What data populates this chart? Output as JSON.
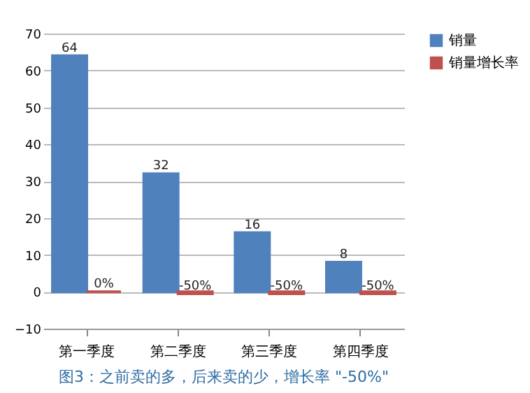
{
  "chart_data": {
    "type": "bar",
    "categories": [
      "第一季度",
      "第二季度",
      "第三季度",
      "第四季度"
    ],
    "series": [
      {
        "name": "销量",
        "color": "#4f81bd",
        "values": [
          64,
          32,
          16,
          8
        ],
        "value_labels": [
          "64",
          "32",
          "16",
          "8"
        ]
      },
      {
        "name": "销量增长率",
        "color": "#c0504d",
        "values": [
          0,
          -0.5,
          -0.5,
          -0.5
        ],
        "value_labels": [
          "0%",
          "-50%",
          "-50%",
          "-50%"
        ]
      }
    ],
    "ylim": [
      -10,
      70
    ],
    "yticks": [
      -10,
      0,
      10,
      20,
      30,
      40,
      50,
      60,
      70
    ],
    "grid": "y",
    "legend": "right",
    "annotations": [
      "图3：之前卖的多，后来卖的少，增长率 \"-50%\""
    ]
  }
}
